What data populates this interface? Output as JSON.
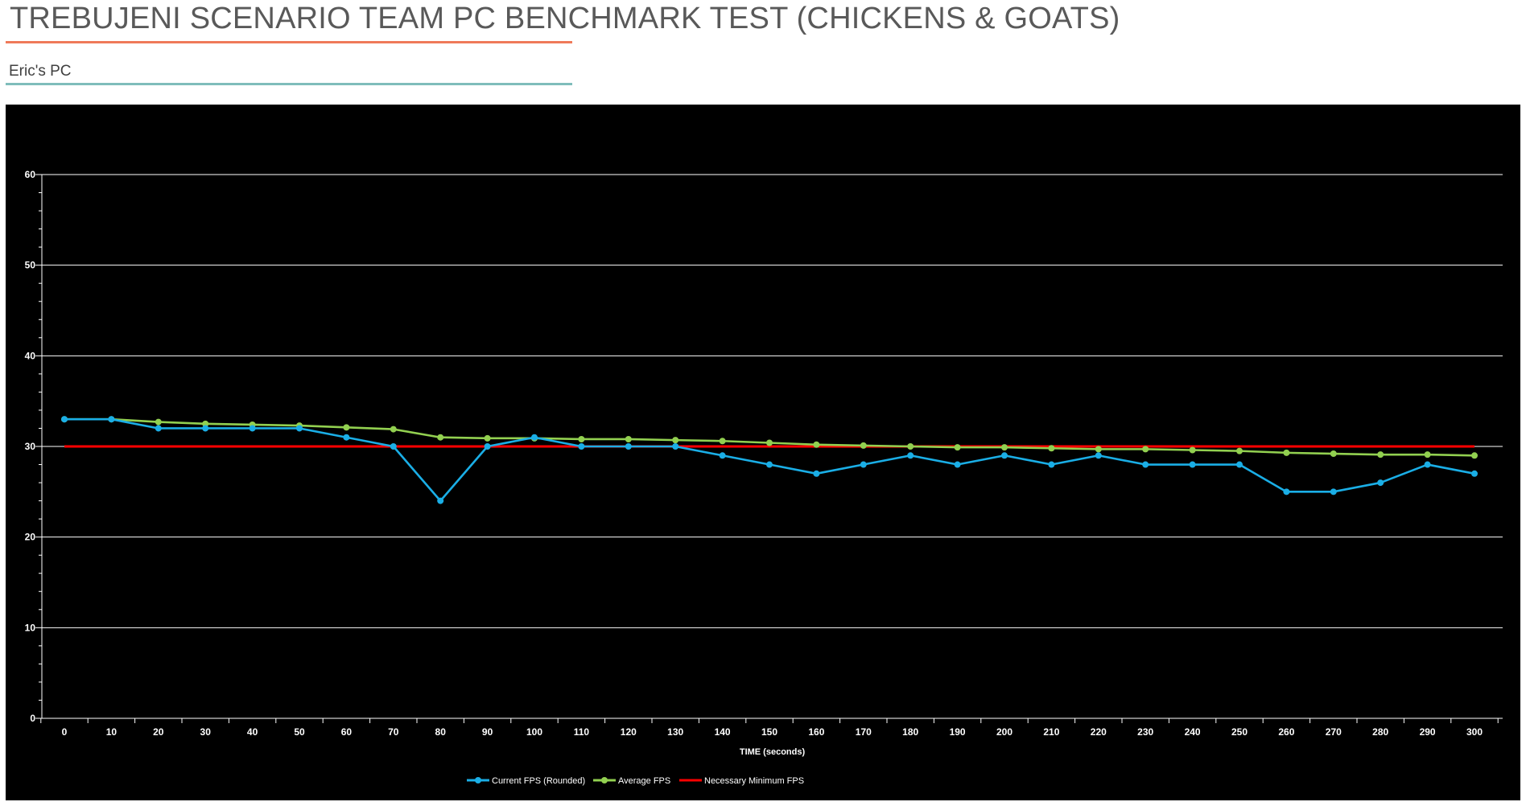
{
  "header": {
    "title": "TREBUJENI SCENARIO TEAM PC BENCHMARK TEST (CHICKENS & GOATS)",
    "subtitle": "Eric's PC"
  },
  "colors": {
    "title_rule": "#ef7a5a",
    "subtitle_rule": "#7fbdbb",
    "chart_background": "#000000",
    "gridlines": "#ffffff"
  },
  "chart_data": {
    "type": "line",
    "title": "",
    "xlabel": "TIME (seconds)",
    "ylabel": "",
    "ylim": [
      0,
      60
    ],
    "yticks": [
      0,
      10,
      20,
      30,
      40,
      50,
      60
    ],
    "grid": "horizontal",
    "legend_position": "bottom",
    "x": [
      0,
      10,
      20,
      30,
      40,
      50,
      60,
      70,
      80,
      90,
      100,
      110,
      120,
      130,
      140,
      150,
      160,
      170,
      180,
      190,
      200,
      210,
      220,
      230,
      240,
      250,
      260,
      270,
      280,
      290,
      300
    ],
    "series": [
      {
        "name": "Current FPS (Rounded)",
        "color": "#1aaee6",
        "markers": true,
        "values": [
          33,
          33,
          32,
          32,
          32,
          32,
          31,
          30,
          24,
          30,
          31,
          30,
          30,
          30,
          29,
          28,
          27,
          28,
          29,
          28,
          29,
          28,
          29,
          28,
          28,
          28,
          25,
          25,
          26,
          28,
          27
        ]
      },
      {
        "name": "Average FPS",
        "color": "#92d050",
        "markers": true,
        "values": [
          33,
          33,
          32.7,
          32.5,
          32.4,
          32.3,
          32.1,
          31.9,
          31,
          30.9,
          30.9,
          30.8,
          30.8,
          30.7,
          30.6,
          30.4,
          30.2,
          30.1,
          30,
          29.9,
          29.9,
          29.8,
          29.7,
          29.7,
          29.6,
          29.5,
          29.3,
          29.2,
          29.1,
          29.1,
          29
        ]
      },
      {
        "name": "Necessary Minimum FPS",
        "color": "#ff0000",
        "markers": false,
        "values": [
          30,
          30,
          30,
          30,
          30,
          30,
          30,
          30,
          30,
          30,
          30,
          30,
          30,
          30,
          30,
          30,
          30,
          30,
          30,
          30,
          30,
          30,
          30,
          30,
          30,
          30,
          30,
          30,
          30,
          30,
          30
        ]
      }
    ]
  }
}
